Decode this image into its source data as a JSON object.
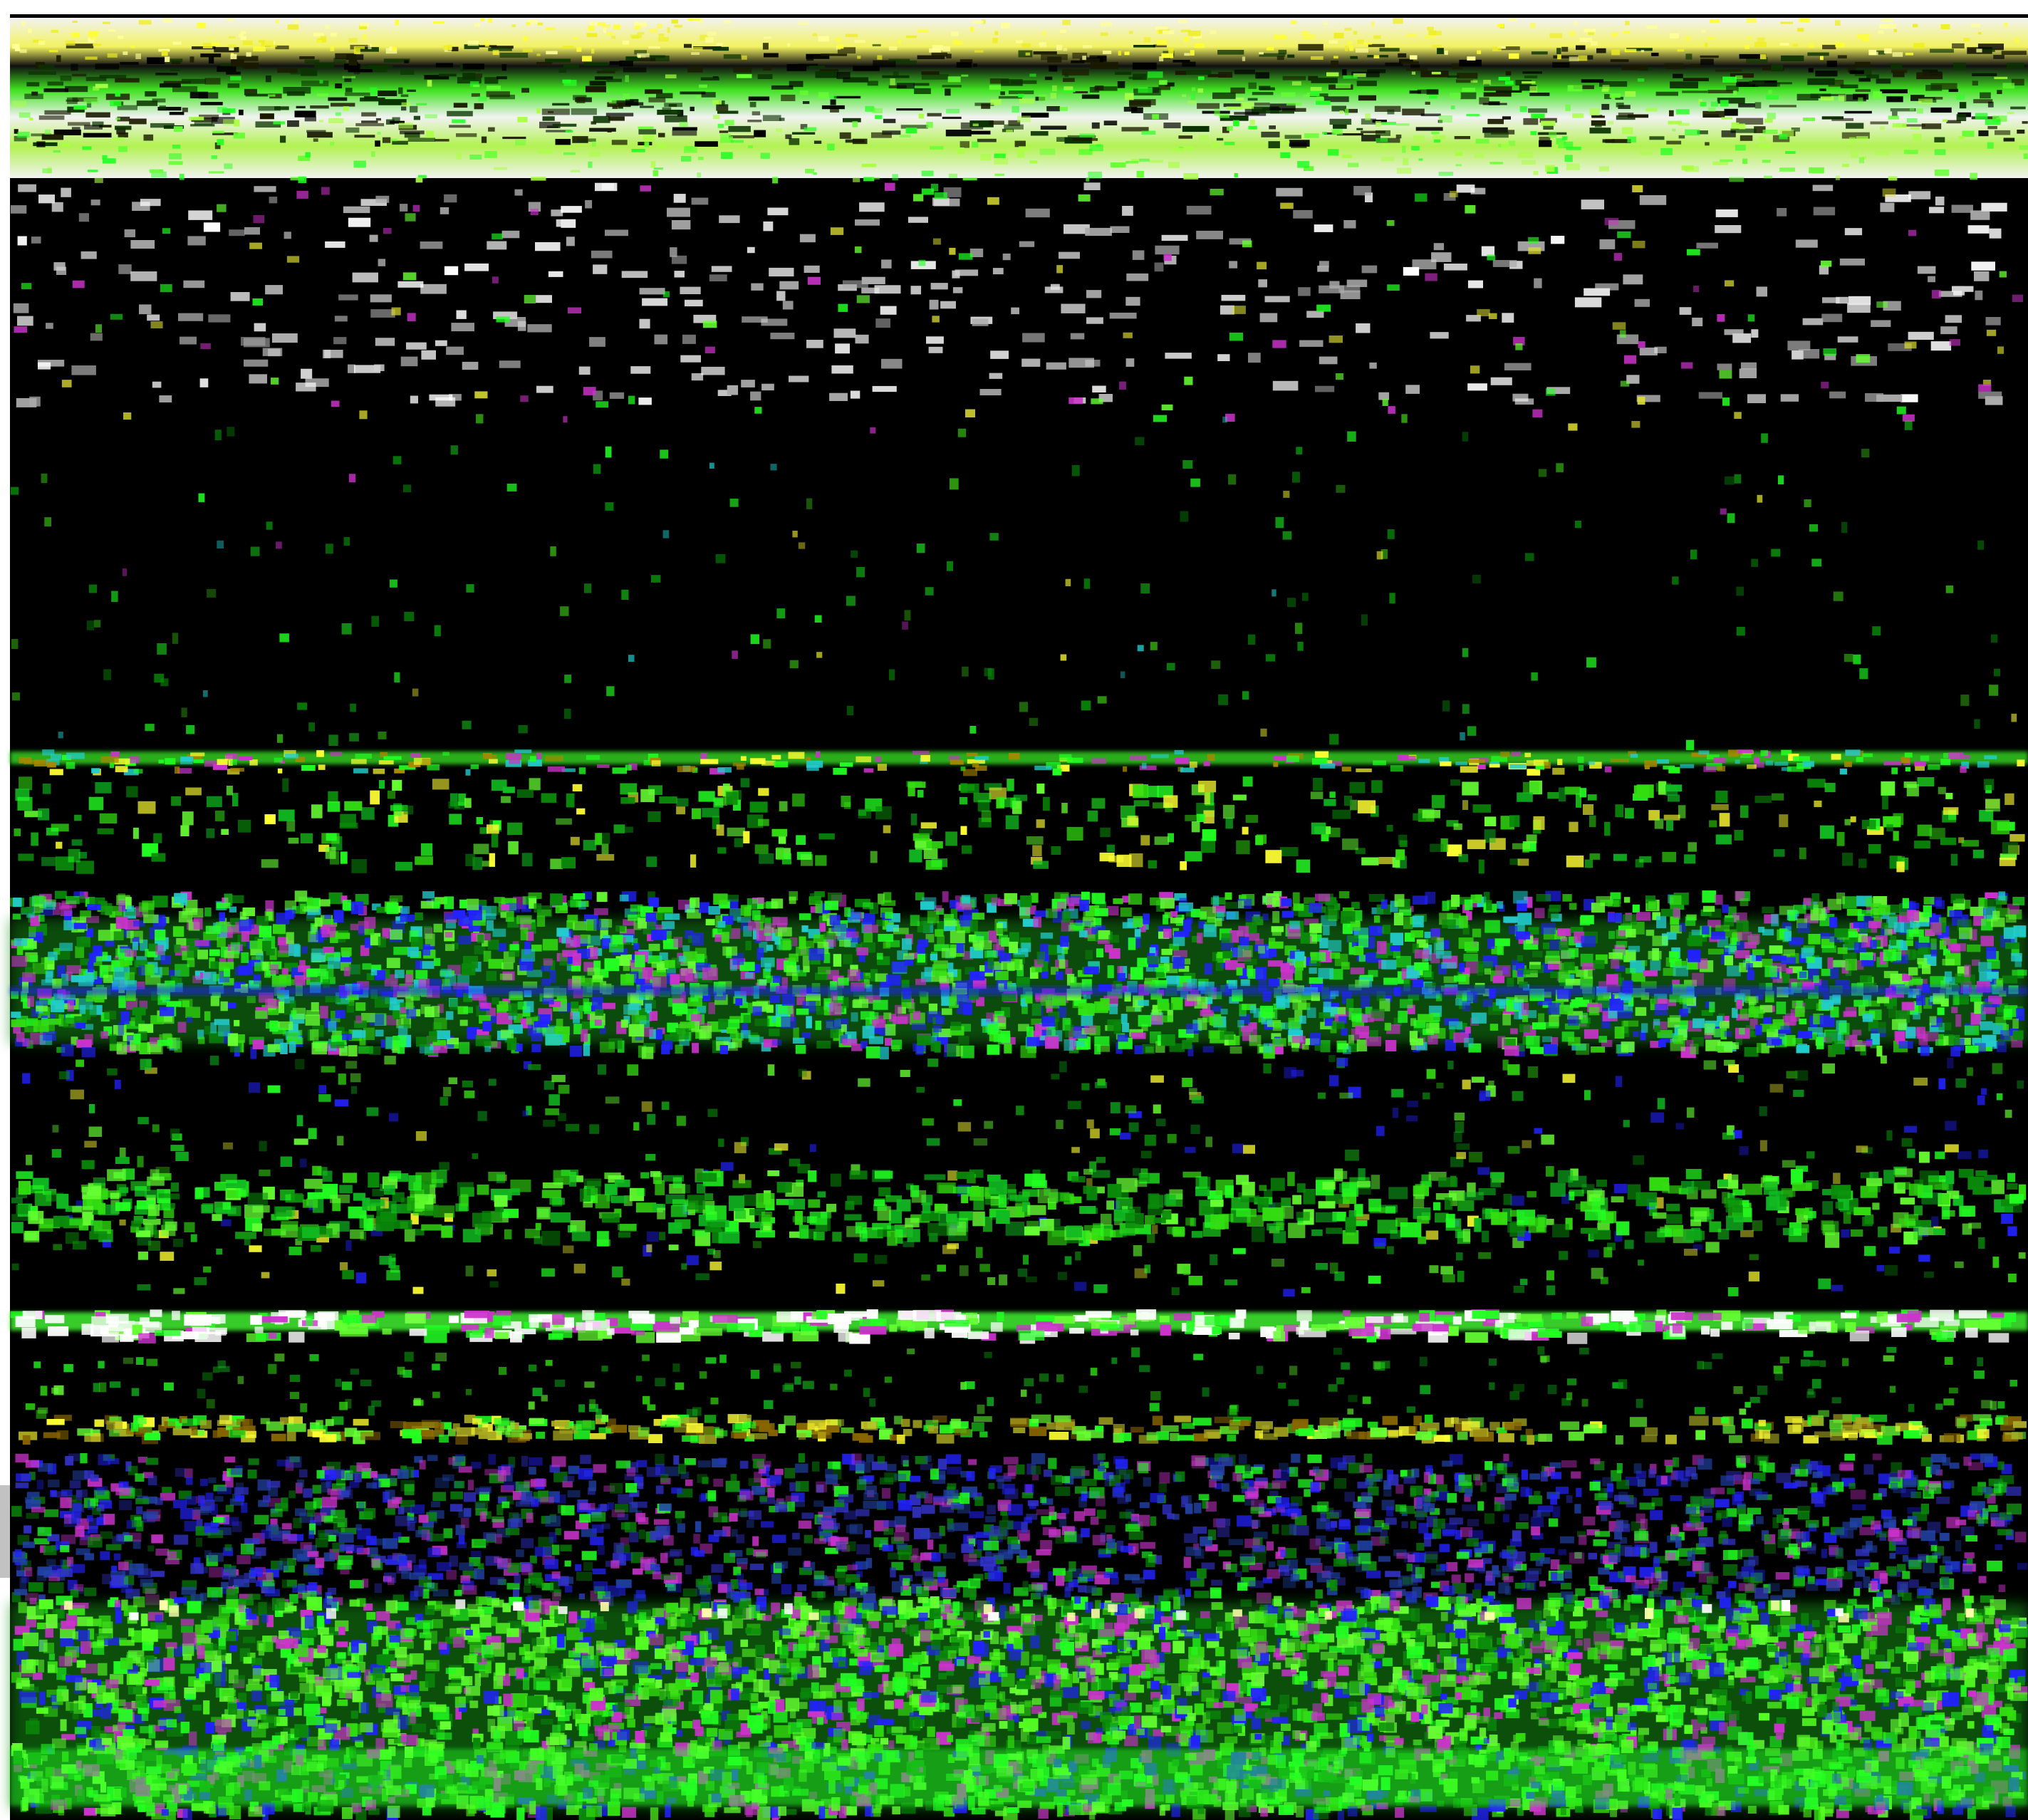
{
  "image": {
    "subject": "tissue-section-fluorescence",
    "background_color": "#000000",
    "frame_color": "#ffffff",
    "palette": {
      "green": "#22ff22",
      "bright_green": "#66ff33",
      "dark_green": "#0a8a0a",
      "white": "#ffffff",
      "yellow": "#ffff33",
      "blue": "#2222ff",
      "magenta": "#cc33cc",
      "cyan": "#22cccc",
      "grey": "#cfcfcf"
    }
  }
}
